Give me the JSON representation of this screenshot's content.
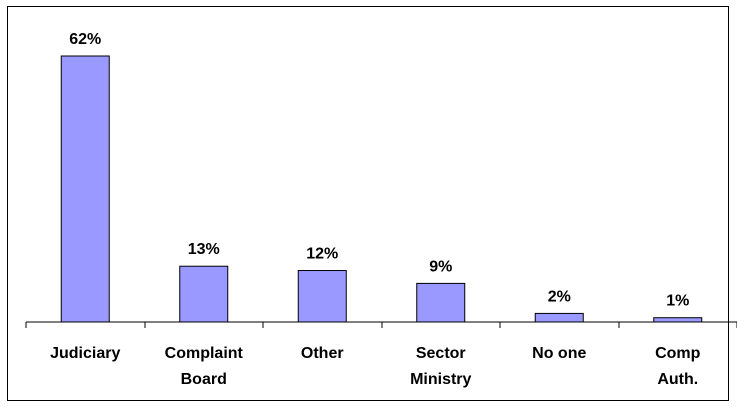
{
  "chart_data": {
    "type": "bar",
    "categories": [
      [
        "Judiciary"
      ],
      [
        "Complaint",
        "Board"
      ],
      [
        "Other"
      ],
      [
        "Sector",
        "Ministry"
      ],
      [
        "No one"
      ],
      [
        "Comp",
        "Auth."
      ]
    ],
    "values": [
      62,
      13,
      12,
      9,
      2,
      1
    ],
    "data_labels": [
      "62%",
      "13%",
      "12%",
      "9%",
      "2%",
      "1%"
    ],
    "unit": "%",
    "ylim": [
      0,
      62
    ],
    "grid": false,
    "legend": "none",
    "bar_color": "#9999ff",
    "border_color": "#000000"
  }
}
